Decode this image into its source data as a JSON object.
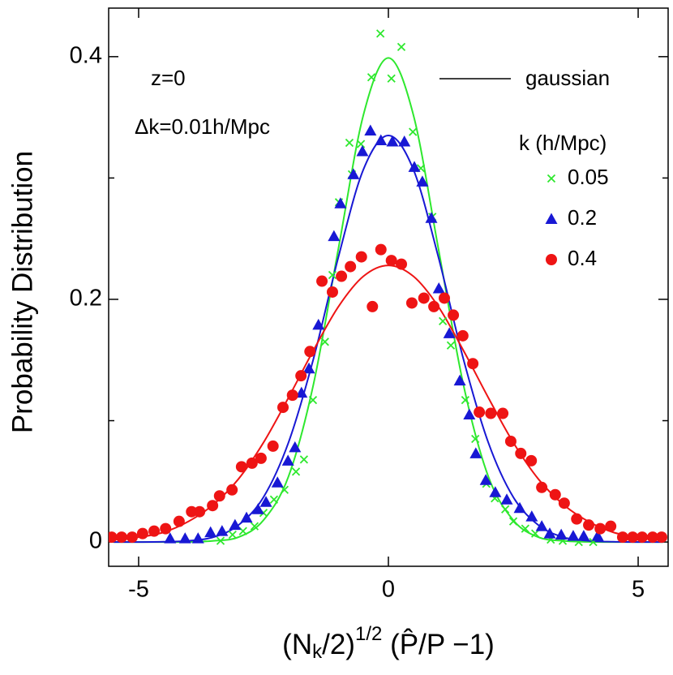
{
  "chart_data": {
    "type": "scatter",
    "xlabel": [
      "(N",
      "k",
      "/2)",
      "1/2",
      " (",
      "P̂",
      "/P −1)"
    ],
    "ylabel": "Probability Distribution",
    "annotations": [
      "z=0",
      "Δk=0.01h/Mpc"
    ],
    "legend_title": "k (h/Mpc)",
    "xlim": [
      -5.6,
      5.6
    ],
    "ylim": [
      -0.02,
      0.44
    ],
    "xticks": [
      -5,
      0,
      5
    ],
    "yticks": [
      0,
      0.2,
      0.4
    ],
    "yminorticks": [
      0.1,
      0.3
    ],
    "series": [
      {
        "name": "0.05",
        "color": "#2ee82e",
        "marker": "x",
        "x": [
          -3.36,
          -3.12,
          -2.91,
          -2.68,
          -2.5,
          -2.29,
          -2.08,
          -1.85,
          -1.69,
          -1.51,
          -1.27,
          -1.12,
          -0.99,
          -0.78,
          -0.73,
          -0.55,
          -0.34,
          -0.16,
          0.06,
          0.26,
          0.49,
          0.65,
          0.88,
          1.09,
          1.25,
          1.54,
          1.74,
          1.96,
          2.13,
          2.34,
          2.5,
          2.74,
          2.94,
          3.25,
          3.49,
          3.81,
          4.1
        ],
        "values": [
          0.001,
          0.006,
          0.009,
          0.013,
          0.024,
          0.035,
          0.043,
          0.058,
          0.068,
          0.117,
          0.165,
          0.22,
          0.28,
          0.329,
          0.303,
          0.328,
          0.383,
          0.419,
          0.382,
          0.408,
          0.338,
          0.308,
          0.268,
          0.182,
          0.162,
          0.117,
          0.085,
          0.048,
          0.036,
          0.027,
          0.017,
          0.011,
          0.007,
          0.002,
          0.001,
          0,
          0
        ]
      },
      {
        "name": "0.2",
        "color": "#1818d4",
        "marker": "triangle",
        "x": [
          -4.37,
          -4.07,
          -3.81,
          -3.56,
          -3.33,
          -3.07,
          -2.84,
          -2.61,
          -2.45,
          -2.22,
          -2.01,
          -1.87,
          -1.74,
          -1.59,
          -1.4,
          -1.09,
          -0.96,
          -0.7,
          -0.52,
          -0.36,
          -0.15,
          0.08,
          0.32,
          0.52,
          0.68,
          0.86,
          1.01,
          1.22,
          1.43,
          1.62,
          1.75,
          1.95,
          2.14,
          2.37,
          2.63,
          2.87,
          3.07,
          3.23,
          3.46,
          3.7,
          3.91,
          4.19
        ],
        "values": [
          0.003,
          0.003,
          0.003,
          0.008,
          0.009,
          0.014,
          0.02,
          0.027,
          0.033,
          0.049,
          0.067,
          0.078,
          0.123,
          0.143,
          0.179,
          0.252,
          0.279,
          0.303,
          0.322,
          0.339,
          0.331,
          0.33,
          0.33,
          0.309,
          0.297,
          0.267,
          0.209,
          0.172,
          0.133,
          0.105,
          0.073,
          0.051,
          0.041,
          0.035,
          0.028,
          0.021,
          0.013,
          0.007,
          0.006,
          0.005,
          0.005,
          0.005
        ]
      },
      {
        "name": "0.4",
        "color": "#ee1414",
        "marker": "circle",
        "x": [
          -5.54,
          -5.34,
          -5.13,
          -4.92,
          -4.69,
          -4.46,
          -4.19,
          -3.94,
          -3.78,
          -3.52,
          -3.38,
          -3.13,
          -2.94,
          -2.73,
          -2.55,
          -2.31,
          -2.11,
          -1.92,
          -1.75,
          -1.57,
          -1.33,
          -1.12,
          -0.94,
          -0.76,
          -0.54,
          -0.32,
          -0.15,
          0.06,
          0.26,
          0.47,
          0.71,
          0.91,
          1.12,
          1.3,
          1.49,
          1.69,
          1.82,
          2.05,
          2.29,
          2.45,
          2.65,
          2.86,
          3.07,
          3.34,
          3.52,
          3.77,
          4.01,
          4.24,
          4.45,
          4.69,
          4.89,
          5.08,
          5.29,
          5.47
        ],
        "values": [
          0.004,
          0.004,
          0.004,
          0.007,
          0.009,
          0.011,
          0.017,
          0.025,
          0.025,
          0.03,
          0.038,
          0.043,
          0.062,
          0.065,
          0.069,
          0.079,
          0.111,
          0.121,
          0.137,
          0.157,
          0.215,
          0.206,
          0.219,
          0.227,
          0.235,
          0.194,
          0.241,
          0.232,
          0.229,
          0.197,
          0.201,
          0.194,
          0.201,
          0.187,
          0.17,
          0.147,
          0.107,
          0.106,
          0.106,
          0.083,
          0.073,
          0.067,
          0.045,
          0.039,
          0.032,
          0.019,
          0.014,
          0.011,
          0.013,
          0.004,
          0.004,
          0.004,
          0.004,
          0.004
        ]
      }
    ],
    "fit": {
      "name": "gaussian",
      "color": "#000000",
      "x": [
        -5.5,
        -5,
        -4.5,
        -4,
        -3.5,
        -3,
        -2.5,
        -2,
        -1.5,
        -1,
        -0.5,
        0,
        0.5,
        1,
        1.5,
        2,
        2.5,
        3,
        3.5,
        4,
        4.5,
        5,
        5.5
      ],
      "curves": [
        {
          "color": "#2ee82e",
          "values": [
            0,
            0,
            0,
            0.0001,
            0.001,
            0.004,
            0.018,
            0.054,
            0.13,
            0.242,
            0.352,
            0.399,
            0.352,
            0.242,
            0.13,
            0.054,
            0.018,
            0.004,
            0.001,
            0.0001,
            0,
            0,
            0
          ]
        },
        {
          "color": "#1818d4",
          "values": [
            0,
            0,
            0.0002,
            0.001,
            0.004,
            0.014,
            0.037,
            0.082,
            0.151,
            0.235,
            0.307,
            0.335,
            0.307,
            0.235,
            0.151,
            0.082,
            0.037,
            0.014,
            0.004,
            0.001,
            0.0002,
            0,
            0
          ]
        },
        {
          "color": "#ee1414",
          "values": [
            0.002,
            0.004,
            0.008,
            0.017,
            0.031,
            0.052,
            0.082,
            0.119,
            0.158,
            0.194,
            0.219,
            0.228,
            0.219,
            0.194,
            0.158,
            0.119,
            0.082,
            0.052,
            0.031,
            0.017,
            0.008,
            0.004,
            0.002
          ]
        }
      ]
    }
  }
}
